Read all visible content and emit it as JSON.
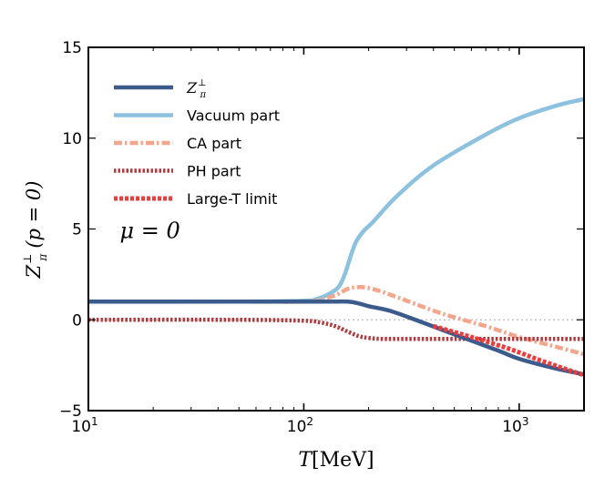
{
  "chart_data": {
    "type": "line",
    "title": "",
    "xlabel": "T[MeV]",
    "xlabel_parts": {
      "var": "T",
      "unit": "[MeV]"
    },
    "ylabel": "Z_π^⊥ (p=0)",
    "ylabel_parts": {
      "var": "Z",
      "sub": "π",
      "sup": "⊥",
      "arg": "(p = 0)"
    },
    "xscale": "log",
    "xlim": [
      10,
      2000
    ],
    "ylim": [
      -5,
      15
    ],
    "xticks": [
      {
        "value": 10,
        "base": "10",
        "exp": "1"
      },
      {
        "value": 100,
        "base": "10",
        "exp": "2"
      },
      {
        "value": 1000,
        "base": "10",
        "exp": "3"
      }
    ],
    "yticks": [
      {
        "value": 15,
        "label": "15"
      },
      {
        "value": 10,
        "label": "10"
      },
      {
        "value": 5,
        "label": "5"
      },
      {
        "value": 0,
        "label": "0"
      },
      {
        "value": -5,
        "label": "−5"
      }
    ],
    "reference_line": {
      "y": 0,
      "style": "dotted",
      "color": "#bbbbbb"
    },
    "annotation": {
      "text": "μ = 0",
      "x": 14,
      "y": 4.5
    },
    "legend": {
      "placement": "top-left"
    },
    "series": [
      {
        "name": "Z_π^⊥",
        "legend_label": {
          "var": "Z",
          "sub": "π",
          "sup": "⊥"
        },
        "color": "#3b5b8c",
        "style": "solid",
        "x": [
          10,
          50,
          100,
          130,
          160,
          180,
          200,
          250,
          330,
          500,
          800,
          1000,
          1500,
          2000
        ],
        "y": [
          1.0,
          1.0,
          1.0,
          1.0,
          1.0,
          0.9,
          0.75,
          0.5,
          0.0,
          -0.8,
          -1.7,
          -2.15,
          -2.7,
          -3.0
        ]
      },
      {
        "name": "Vacuum part",
        "legend_label": {
          "text": "Vacuum part"
        },
        "color": "#8dc1e0",
        "style": "solid",
        "x": [
          10,
          50,
          100,
          115,
          130,
          145,
          155,
          165,
          175,
          190,
          210,
          270,
          400,
          700,
          1000,
          1500,
          2000
        ],
        "y": [
          1.0,
          1.0,
          1.05,
          1.15,
          1.4,
          1.8,
          2.5,
          3.5,
          4.3,
          4.9,
          5.4,
          6.8,
          8.5,
          10.2,
          11.1,
          11.8,
          12.15
        ]
      },
      {
        "name": "CA part",
        "legend_label": {
          "text": "CA part"
        },
        "color": "#f4a68c",
        "style": "dashdot",
        "x": [
          10,
          50,
          100,
          120,
          140,
          160,
          180,
          200,
          230,
          300,
          450,
          700,
          1000,
          1500,
          2000
        ],
        "y": [
          1.0,
          1.0,
          1.0,
          1.1,
          1.35,
          1.7,
          1.8,
          1.75,
          1.55,
          1.05,
          0.3,
          -0.35,
          -0.95,
          -1.5,
          -1.9
        ]
      },
      {
        "name": "PH part",
        "legend_label": {
          "text": "PH part"
        },
        "color": "#b03a3e",
        "style": "dotted",
        "x": [
          10,
          50,
          100,
          120,
          140,
          160,
          180,
          200,
          230,
          300,
          500,
          1000,
          2000
        ],
        "y": [
          0.0,
          0.0,
          -0.05,
          -0.15,
          -0.35,
          -0.65,
          -0.9,
          -1.0,
          -1.05,
          -1.05,
          -1.05,
          -1.05,
          -1.05
        ]
      },
      {
        "name": "Large-T limit",
        "legend_label": {
          "text": "Large-T limit"
        },
        "color": "#ee3b3b",
        "style": "dotted",
        "x": [
          400,
          600,
          900,
          1300,
          2000
        ],
        "y": [
          -0.35,
          -0.95,
          -1.6,
          -2.3,
          -3.05
        ]
      }
    ]
  }
}
